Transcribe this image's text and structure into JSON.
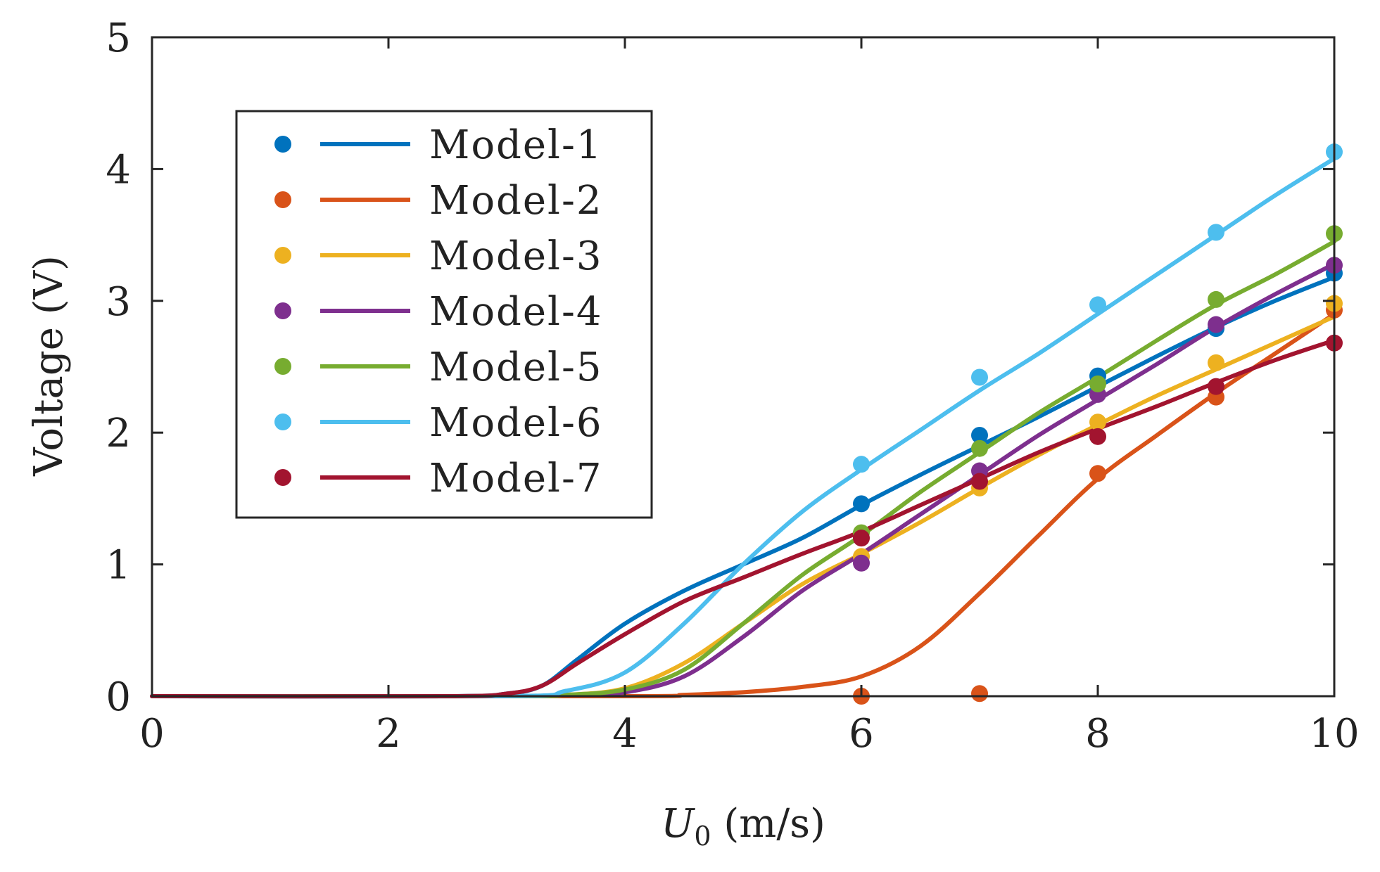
{
  "chart_data": {
    "type": "line",
    "title": "",
    "xlabel": {
      "var": "U",
      "sub": "0",
      "units": " (m/s)"
    },
    "ylabel": "Voltage (V)",
    "xlim": [
      0,
      10
    ],
    "ylim": [
      0,
      5
    ],
    "xticks": [
      "0",
      "2",
      "4",
      "6",
      "8",
      "10"
    ],
    "yticks": [
      "0",
      "1",
      "2",
      "3",
      "4",
      "5"
    ],
    "grid": false,
    "legend_position": "top-left",
    "series": [
      {
        "name": "Model-1",
        "color": "#0072BD",
        "markers": {
          "x": [
            6,
            7,
            8,
            9,
            10
          ],
          "y": [
            1.46,
            1.98,
            2.43,
            2.79,
            3.21
          ]
        },
        "curve": {
          "x": [
            0,
            2.5,
            3.0,
            3.3,
            3.6,
            4.0,
            4.5,
            5.0,
            5.5,
            6.0,
            6.5,
            7.0,
            7.5,
            8.0,
            8.5,
            9.0,
            9.5,
            10.0
          ],
          "y": [
            0,
            0,
            0.02,
            0.08,
            0.28,
            0.55,
            0.8,
            1.0,
            1.2,
            1.45,
            1.68,
            1.9,
            2.12,
            2.35,
            2.58,
            2.8,
            3.0,
            3.18
          ]
        }
      },
      {
        "name": "Model-2",
        "color": "#D95319",
        "markers": {
          "x": [
            6,
            7,
            8,
            9,
            10
          ],
          "y": [
            0.0,
            0.02,
            1.69,
            2.27,
            2.93
          ]
        },
        "curve": {
          "x": [
            0,
            4.0,
            4.5,
            5.0,
            5.5,
            6.0,
            6.5,
            7.0,
            7.5,
            8.0,
            8.5,
            9.0,
            9.5,
            10.0
          ],
          "y": [
            0,
            0,
            0.01,
            0.03,
            0.07,
            0.15,
            0.38,
            0.78,
            1.22,
            1.65,
            1.98,
            2.3,
            2.6,
            2.9
          ]
        }
      },
      {
        "name": "Model-3",
        "color": "#EDB120",
        "markers": {
          "x": [
            6,
            7,
            8,
            9,
            10
          ],
          "y": [
            1.06,
            1.58,
            2.08,
            2.53,
            2.98
          ]
        },
        "curve": {
          "x": [
            0,
            3.0,
            3.5,
            4.0,
            4.5,
            5.0,
            5.5,
            6.0,
            6.5,
            7.0,
            7.5,
            8.0,
            8.5,
            9.0,
            9.5,
            10.0
          ],
          "y": [
            0,
            0,
            0.01,
            0.06,
            0.25,
            0.55,
            0.85,
            1.08,
            1.32,
            1.58,
            1.83,
            2.06,
            2.28,
            2.48,
            2.68,
            2.88
          ]
        }
      },
      {
        "name": "Model-4",
        "color": "#7E2F8E",
        "markers": {
          "x": [
            6,
            7,
            8,
            9,
            10
          ],
          "y": [
            1.01,
            1.71,
            2.29,
            2.82,
            3.27
          ]
        },
        "curve": {
          "x": [
            0,
            3.0,
            3.5,
            4.0,
            4.5,
            5.0,
            5.5,
            6.0,
            6.5,
            7.0,
            7.5,
            8.0,
            8.5,
            9.0,
            9.5,
            10.0
          ],
          "y": [
            0,
            0,
            0.01,
            0.03,
            0.15,
            0.45,
            0.8,
            1.08,
            1.38,
            1.68,
            1.98,
            2.25,
            2.52,
            2.8,
            3.05,
            3.28
          ]
        }
      },
      {
        "name": "Model-5",
        "color": "#77AC30",
        "markers": {
          "x": [
            6,
            7,
            8,
            9,
            10
          ],
          "y": [
            1.24,
            1.88,
            2.37,
            3.01,
            3.51
          ]
        },
        "curve": {
          "x": [
            0,
            3.0,
            3.5,
            4.0,
            4.5,
            5.0,
            5.5,
            6.0,
            6.5,
            7.0,
            7.5,
            8.0,
            8.5,
            9.0,
            9.5,
            10.0
          ],
          "y": [
            0,
            0,
            0.01,
            0.05,
            0.2,
            0.55,
            0.92,
            1.22,
            1.55,
            1.85,
            2.15,
            2.42,
            2.7,
            2.97,
            3.2,
            3.45
          ]
        }
      },
      {
        "name": "Model-6",
        "color": "#4DBEEE",
        "markers": {
          "x": [
            6,
            7,
            8,
            9,
            10
          ],
          "y": [
            1.76,
            2.42,
            2.97,
            3.52,
            4.13
          ]
        },
        "curve": {
          "x": [
            0,
            3.0,
            3.5,
            4.0,
            4.5,
            5.0,
            5.5,
            6.0,
            6.5,
            7.0,
            7.5,
            8.0,
            8.5,
            9.0,
            9.5,
            10.0
          ],
          "y": [
            0,
            0,
            0.04,
            0.18,
            0.55,
            1.0,
            1.4,
            1.72,
            2.02,
            2.32,
            2.6,
            2.9,
            3.2,
            3.5,
            3.8,
            4.08
          ]
        }
      },
      {
        "name": "Model-7",
        "color": "#A2142F",
        "markers": {
          "x": [
            6,
            7,
            8,
            9,
            10
          ],
          "y": [
            1.2,
            1.63,
            1.97,
            2.35,
            2.68
          ]
        },
        "curve": {
          "x": [
            0,
            2.5,
            3.0,
            3.3,
            3.6,
            4.0,
            4.5,
            5.0,
            5.5,
            6.0,
            6.5,
            7.0,
            7.5,
            8.0,
            8.5,
            9.0,
            9.5,
            10.0
          ],
          "y": [
            0,
            0,
            0.02,
            0.08,
            0.25,
            0.47,
            0.72,
            0.9,
            1.08,
            1.25,
            1.45,
            1.65,
            1.85,
            2.03,
            2.2,
            2.38,
            2.55,
            2.7
          ]
        }
      }
    ]
  }
}
